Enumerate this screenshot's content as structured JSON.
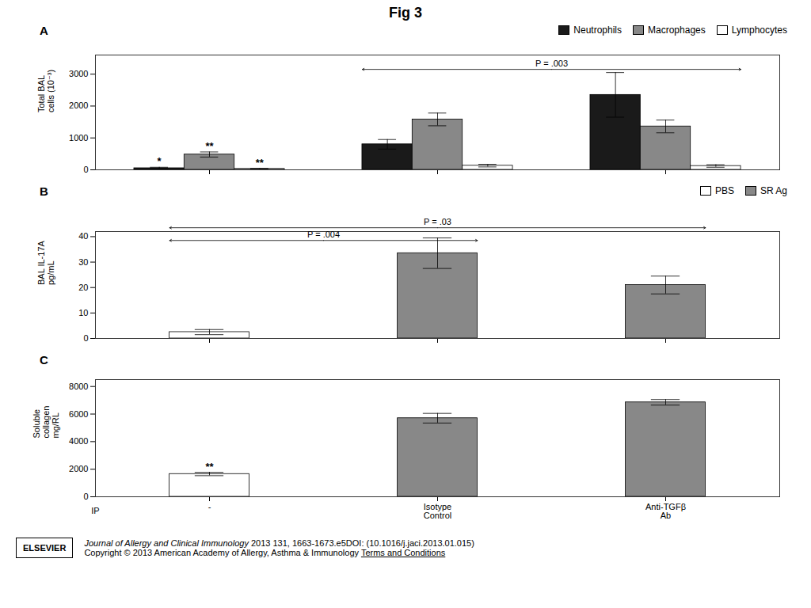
{
  "title": "Fig 3",
  "annotations": [
    "ELSEVIER",
    "Journal of Allergy and Clinical Immunology",
    " 2013 131, 1663-1673.e5DOI: (10.1016/j.jaci.2013.01.015)",
    "Copyright © 2013 American Academy of Allergy, Asthma & Immunology ",
    "Terms and Conditions"
  ],
  "chart_data": [
    {
      "type": "bar",
      "title": "A",
      "ylabel": "Total BAL\ncells (10⁻³)",
      "categories": [
        null,
        null,
        null
      ],
      "series": [
        {
          "name": "Neutrophils",
          "color": "#1a1a1a",
          "values": [
            50,
            800,
            2350
          ],
          "errors": [
            30,
            150,
            700
          ]
        },
        {
          "name": "Macrophages",
          "color": "#888888",
          "values": [
            480,
            1580,
            1360
          ],
          "errors": [
            80,
            200,
            200
          ]
        },
        {
          "name": "Lymphocytes",
          "color": "#ffffff",
          "values": [
            30,
            130,
            120
          ],
          "errors": [
            15,
            40,
            40
          ]
        }
      ],
      "ylim": [
        0,
        3600
      ],
      "yticks": [
        0,
        1000,
        2000,
        3000
      ],
      "legend": "upper right",
      "annotations": [
        {
          "text": "*",
          "series": "Neutrophils",
          "index": 0
        },
        {
          "text": "**",
          "series": "Macrophages",
          "index": 0
        },
        {
          "text": "**",
          "series": "Lymphocytes",
          "index": 0
        },
        {
          "text": "P = .003",
          "from": 1,
          "to": 2,
          "y": 3150
        }
      ]
    },
    {
      "type": "bar",
      "title": "B",
      "ylabel": "BAL IL-17A\npg/mL",
      "categories": [
        null,
        null,
        null
      ],
      "series": [
        {
          "name": "PBS",
          "color": "#ffffff",
          "values": [
            2.5,
            null,
            null
          ],
          "errors": [
            1.0,
            null,
            null
          ]
        },
        {
          "name": "SR Ag",
          "color": "#888888",
          "values": [
            null,
            33.5,
            21.0
          ],
          "errors": [
            null,
            6.0,
            3.5
          ]
        }
      ],
      "ylim": [
        0,
        42
      ],
      "yticks": [
        0,
        10,
        20,
        30,
        40
      ],
      "legend": "upper right",
      "annotations": [
        {
          "text": "P = .004",
          "from": 0,
          "to": 1,
          "y": 38.5
        },
        {
          "text": "P = .03",
          "from": 0,
          "to": 2,
          "y": 43.5
        }
      ]
    },
    {
      "type": "bar",
      "title": "C",
      "ylabel": "Soluble\ncollagen\nmg/RL",
      "categories": [
        "-",
        "Isotype\nControl",
        "Anti-TGFβ\nAb"
      ],
      "series": [
        {
          "values": [
            1650,
            5700,
            6850
          ],
          "errors": [
            120,
            350,
            200
          ],
          "colors": [
            "#ffffff",
            "#888888",
            "#888888"
          ]
        }
      ],
      "ylim": [
        0,
        8500
      ],
      "yticks": [
        0,
        2000,
        4000,
        6000,
        8000
      ],
      "annotations": [
        {
          "text": "IP"
        },
        {
          "text": "**",
          "index": 0
        }
      ]
    }
  ]
}
